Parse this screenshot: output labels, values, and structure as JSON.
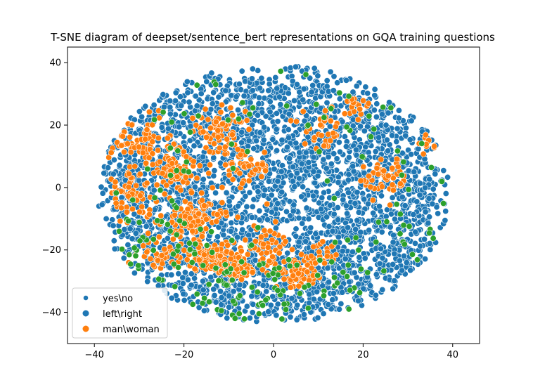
{
  "chart_data": {
    "type": "scatter",
    "title": "T-SNE diagram of deepset/sentence_bert representations on GQA training questions",
    "xlabel": "",
    "ylabel": "",
    "xlim": [
      -46,
      46
    ],
    "ylim": [
      -50,
      45
    ],
    "xticks": [
      -40,
      -20,
      0,
      20,
      40
    ],
    "yticks": [
      -40,
      -20,
      0,
      20,
      40
    ],
    "grid": false,
    "legend_position": "lower-left",
    "point_edge_color": "#ffffff",
    "series": [
      {
        "name": "yes\\no",
        "color": "#1f77b4",
        "distribution": "filled ellipse cloud",
        "center": [
          0,
          -2
        ],
        "radius": [
          39,
          41
        ],
        "approx_count": 6000
      },
      {
        "name": "left\\right",
        "color": "#1f77b4",
        "distribution": "filled ellipse cloud",
        "center": [
          0,
          -2
        ],
        "radius": [
          39,
          41
        ],
        "approx_count": 2500
      },
      {
        "name": "man\\woman",
        "color": "#ff7f0e",
        "distribution": "clusters in left half and lower-middle",
        "approx_count": 900
      },
      {
        "name": "",
        "color": "#2ca02c",
        "distribution": "sparse, mostly along lower and left edge",
        "approx_count": 180
      }
    ],
    "legend": [
      {
        "label": "yes\\no",
        "color": "#1f77b4",
        "marker_size": "small"
      },
      {
        "label": "left\\right",
        "color": "#1f77b4",
        "marker_size": "large"
      },
      {
        "label": "man\\woman",
        "color": "#ff7f0e",
        "marker_size": "large"
      }
    ]
  }
}
